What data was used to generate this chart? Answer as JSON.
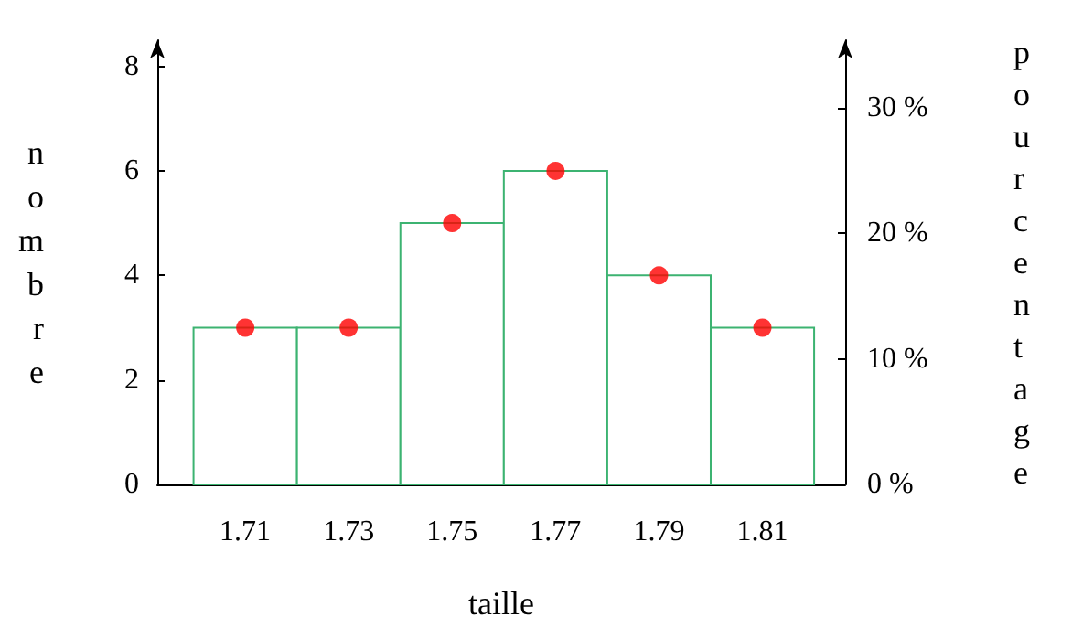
{
  "chart_data": {
    "type": "histogram",
    "xlabel": "taille",
    "ylabel": "nombre",
    "y2label": "pourcentage",
    "bins": [
      1.7,
      1.72,
      1.74,
      1.76,
      1.78,
      1.8,
      1.82
    ],
    "series": [
      {
        "color": "#3cb371",
        "values": [
          3,
          3,
          5,
          6,
          4,
          3
        ]
      },
      {
        "type": "scatter",
        "color": "#ff0000",
        "x": [
          1.71,
          1.73,
          1.75,
          1.77,
          1.79,
          1.81
        ],
        "values": [
          3,
          3,
          5,
          6,
          4,
          3
        ]
      }
    ],
    "marker": "circle",
    "xlim": [
      1.693,
      1.826
    ],
    "xticks": [
      1.71,
      1.73,
      1.75,
      1.77,
      1.79,
      1.81
    ],
    "ylim": [
      0,
      8.5
    ],
    "yticks": [
      0,
      2,
      4,
      6,
      8
    ],
    "y2lim": [
      0,
      35.4
    ],
    "y2ticks": [
      {
        "value": 0,
        "label": "0 %"
      },
      {
        "value": 10,
        "label": "10 %"
      },
      {
        "value": 20,
        "label": "20 %"
      },
      {
        "value": 30,
        "label": "30 %"
      }
    ]
  }
}
